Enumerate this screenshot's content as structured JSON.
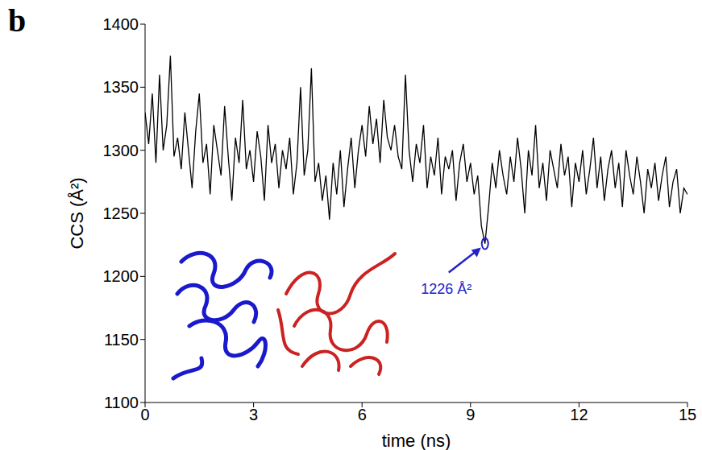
{
  "chart_data": {
    "type": "line",
    "panel_label": "b",
    "x_label": "time (ns)",
    "y_label": "CCS (Å²)",
    "xlim": [
      0,
      15
    ],
    "xticks": [
      0,
      3,
      6,
      9,
      12,
      15
    ],
    "ylim": [
      1100,
      1400
    ],
    "yticks": [
      1100,
      1150,
      1200,
      1250,
      1300,
      1350,
      1400
    ],
    "grid": false,
    "color": "#000000",
    "annotations": [
      {
        "text": "1226 Å²",
        "x": 9.4,
        "y": 1226,
        "color": "#2222cc"
      }
    ],
    "x": [
      0,
      0.1,
      0.2,
      0.3,
      0.4,
      0.5,
      0.6,
      0.7,
      0.8,
      0.9,
      1,
      1.1,
      1.2,
      1.3,
      1.4,
      1.5,
      1.6,
      1.7,
      1.8,
      1.9,
      2,
      2.1,
      2.2,
      2.3,
      2.4,
      2.5,
      2.6,
      2.7,
      2.8,
      2.9,
      3,
      3.1,
      3.2,
      3.3,
      3.4,
      3.5,
      3.6,
      3.7,
      3.8,
      3.9,
      4,
      4.1,
      4.2,
      4.3,
      4.4,
      4.5,
      4.6,
      4.7,
      4.8,
      4.9,
      5,
      5.1,
      5.2,
      5.3,
      5.4,
      5.5,
      5.6,
      5.7,
      5.8,
      5.9,
      6,
      6.1,
      6.2,
      6.3,
      6.4,
      6.5,
      6.6,
      6.7,
      6.8,
      6.9,
      7,
      7.1,
      7.2,
      7.3,
      7.4,
      7.5,
      7.6,
      7.7,
      7.8,
      7.9,
      8,
      8.1,
      8.2,
      8.3,
      8.4,
      8.5,
      8.6,
      8.7,
      8.8,
      8.9,
      9,
      9.1,
      9.2,
      9.3,
      9.4,
      9.5,
      9.6,
      9.7,
      9.8,
      9.9,
      10,
      10.1,
      10.2,
      10.3,
      10.4,
      10.5,
      10.6,
      10.7,
      10.8,
      10.9,
      11,
      11.1,
      11.2,
      11.3,
      11.4,
      11.5,
      11.6,
      11.7,
      11.8,
      11.9,
      12,
      12.1,
      12.2,
      12.3,
      12.4,
      12.5,
      12.6,
      12.7,
      12.8,
      12.9,
      13,
      13.1,
      13.2,
      13.3,
      13.4,
      13.5,
      13.6,
      13.7,
      13.8,
      13.9,
      14,
      14.1,
      14.2,
      14.3,
      14.4,
      14.5,
      14.6,
      14.7,
      14.8,
      14.9,
      15
    ],
    "values": [
      1330,
      1305,
      1345,
      1290,
      1360,
      1300,
      1320,
      1375,
      1295,
      1310,
      1285,
      1330,
      1300,
      1270,
      1315,
      1345,
      1290,
      1305,
      1265,
      1320,
      1300,
      1280,
      1335,
      1295,
      1260,
      1310,
      1290,
      1340,
      1285,
      1300,
      1275,
      1315,
      1295,
      1260,
      1320,
      1290,
      1305,
      1270,
      1300,
      1285,
      1310,
      1265,
      1290,
      1350,
      1280,
      1300,
      1365,
      1275,
      1290,
      1260,
      1280,
      1245,
      1290,
      1265,
      1300,
      1255,
      1285,
      1310,
      1270,
      1300,
      1320,
      1295,
      1335,
      1305,
      1325,
      1290,
      1340,
      1310,
      1300,
      1320,
      1295,
      1285,
      1360,
      1300,
      1275,
      1305,
      1290,
      1320,
      1270,
      1295,
      1280,
      1310,
      1265,
      1295,
      1285,
      1300,
      1260,
      1290,
      1305,
      1275,
      1290,
      1265,
      1280,
      1240,
      1226,
      1255,
      1290,
      1270,
      1300,
      1280,
      1265,
      1295,
      1275,
      1310,
      1285,
      1250,
      1300,
      1280,
      1320,
      1270,
      1290,
      1260,
      1300,
      1285,
      1270,
      1305,
      1280,
      1295,
      1255,
      1290,
      1275,
      1300,
      1265,
      1285,
      1310,
      1270,
      1295,
      1260,
      1285,
      1300,
      1270,
      1290,
      1255,
      1300,
      1280,
      1265,
      1295,
      1275,
      1250,
      1285,
      1270,
      1290,
      1260,
      1280,
      1295,
      1255,
      1275,
      1285,
      1250,
      1270,
      1265
    ]
  }
}
